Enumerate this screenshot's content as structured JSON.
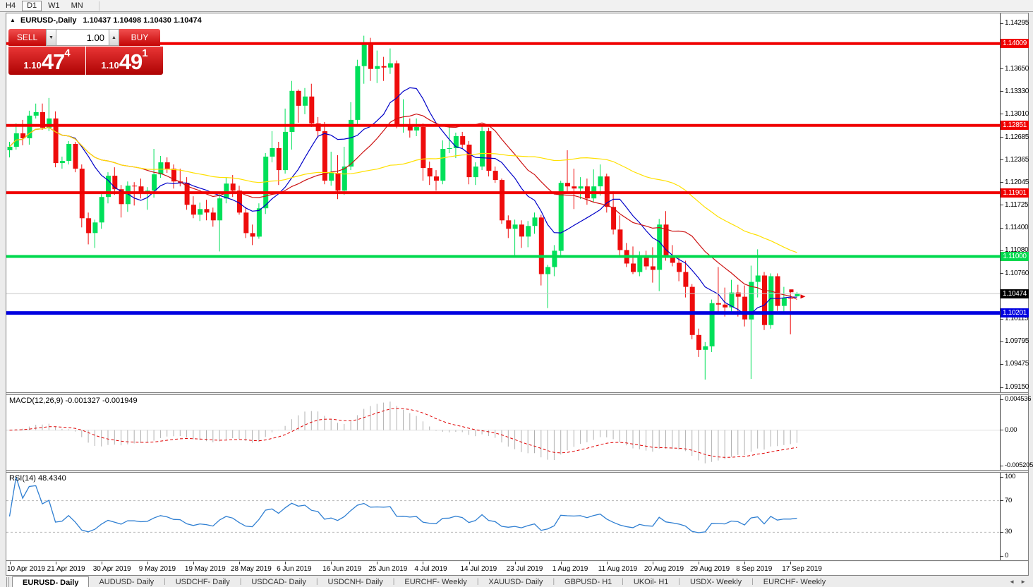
{
  "toolbar": {
    "timeframes": [
      {
        "label": "H4",
        "active": false
      },
      {
        "label": "D1",
        "active": true
      },
      {
        "label": "W1",
        "active": false
      },
      {
        "label": "MN",
        "active": false
      }
    ]
  },
  "chart_header": {
    "collapse_icon": "▲",
    "symbol": "EURUSD-,Daily",
    "ohlc_text": "1.10437 1.10498 1.10430 1.10474"
  },
  "trade_widget": {
    "sell_label": "SELL",
    "buy_label": "BUY",
    "volume": "1.00",
    "spinner_down": "▼",
    "spinner_up": "▲",
    "sell_price_prefix": "1.10",
    "sell_price_big": "47",
    "sell_price_sup": "4",
    "buy_price_prefix": "1.10",
    "buy_price_big": "49",
    "buy_price_sup": "1"
  },
  "price_axis": {
    "ticks": [
      {
        "label": "1.14295",
        "p": 1.14295
      },
      {
        "label": "1.13650",
        "p": 1.1365
      },
      {
        "label": "1.13330",
        "p": 1.1333
      },
      {
        "label": "1.13010",
        "p": 1.1301
      },
      {
        "label": "1.12685",
        "p": 1.12685
      },
      {
        "label": "1.12365",
        "p": 1.12365
      },
      {
        "label": "1.12045",
        "p": 1.12045
      },
      {
        "label": "1.11725",
        "p": 1.11725
      },
      {
        "label": "1.11400",
        "p": 1.114
      },
      {
        "label": "1.11080",
        "p": 1.1108
      },
      {
        "label": "1.10760",
        "p": 1.1076
      },
      {
        "label": "1.10115",
        "p": 1.10115
      },
      {
        "label": "1.09795",
        "p": 1.09795
      },
      {
        "label": "1.09475",
        "p": 1.09475
      },
      {
        "label": "1.09150",
        "p": 1.0915
      }
    ],
    "tags": [
      {
        "label": "1.14009",
        "p": 1.14009,
        "bg": "#f00000"
      },
      {
        "label": "1.12851",
        "p": 1.12851,
        "bg": "#f00000"
      },
      {
        "label": "1.11901",
        "p": 1.11901,
        "bg": "#f00000"
      },
      {
        "label": "1.11000",
        "p": 1.11,
        "bg": "#00d94e"
      },
      {
        "label": "1.10474",
        "p": 1.10474,
        "bg": "#000000"
      },
      {
        "label": "1.10201",
        "p": 1.10201,
        "bg": "#0000e0"
      }
    ]
  },
  "macd": {
    "label": "MACD(12,26,9) -0.001327 -0.001949",
    "params": [
      12,
      26,
      9
    ],
    "values": [
      -0.001327,
      -0.001949
    ],
    "range": [
      -0.005205,
      0.004536
    ],
    "axis": [
      {
        "label": "0.004536",
        "v": 0.004536
      },
      {
        "label": "0.00",
        "v": 0
      },
      {
        "label": "-0.005205",
        "v": -0.005205
      }
    ]
  },
  "rsi": {
    "label": "RSI(14) 48.4340",
    "period": 14,
    "value": 48.434,
    "levels": [
      70,
      30
    ],
    "axis": [
      {
        "label": "100",
        "v": 100
      },
      {
        "label": "70",
        "v": 70
      },
      {
        "label": "30",
        "v": 30
      },
      {
        "label": "0",
        "v": 0
      }
    ]
  },
  "date_axis": {
    "labels": [
      "10 Apr 2019",
      "21 Apr 2019",
      "30 Apr 2019",
      "9 May 2019",
      "19 May 2019",
      "28 May 2019",
      "6 Jun 2019",
      "16 Jun 2019",
      "25 Jun 2019",
      "4 Jul 2019",
      "14 Jul 2019",
      "23 Jul 2019",
      "1 Aug 2019",
      "11 Aug 2019",
      "20 Aug 2019",
      "29 Aug 2019",
      "8 Sep 2019",
      "17 Sep 2019"
    ]
  },
  "tabs": {
    "items": [
      {
        "label": "EURUSD- Daily",
        "active": true
      },
      {
        "label": "AUDUSD- Daily",
        "active": false
      },
      {
        "label": "USDCHF- Daily",
        "active": false
      },
      {
        "label": "USDCAD- Daily",
        "active": false
      },
      {
        "label": "USDCNH- Daily",
        "active": false
      },
      {
        "label": "EURCHF- Weekly",
        "active": false
      },
      {
        "label": "XAUUSD- Daily",
        "active": false
      },
      {
        "label": "GBPUSD- H1",
        "active": false
      },
      {
        "label": "UKOil- H1",
        "active": false
      },
      {
        "label": "USDX- Weekly",
        "active": false
      },
      {
        "label": "EURCHF- Weekly",
        "active": false
      }
    ],
    "scroll_left": "◄",
    "scroll_right": "►"
  },
  "chart_data": {
    "type": "candlestick",
    "symbol": "EURUSD-",
    "timeframe": "Daily",
    "ylim": [
      1.0915,
      1.14295
    ],
    "current_price": 1.10474,
    "colors": {
      "bull": "#00e05a",
      "bear": "#ee0c0c",
      "ma_fast": "#0000c8",
      "ma_mid": "#cc1111",
      "ma_slow": "#ffe000",
      "macd_hist": "#b0b0b0",
      "macd_signal": "#e00000",
      "rsi_line": "#2f7fd2",
      "current_line": "#c8c8c8"
    },
    "overlays": [
      {
        "name": "ma-fast",
        "type": "sma",
        "period": 10,
        "color": "#0000c8"
      },
      {
        "name": "ma-mid",
        "type": "sma",
        "period": 21,
        "color": "#cc1111"
      },
      {
        "name": "ma-slow",
        "type": "sma",
        "period": 50,
        "color": "#ffe000"
      }
    ],
    "hlines": [
      {
        "p": 1.14009,
        "color": "#f00000",
        "w": 4
      },
      {
        "p": 1.12851,
        "color": "#f00000",
        "w": 4
      },
      {
        "p": 1.11901,
        "color": "#f00000",
        "w": 4
      },
      {
        "p": 1.11,
        "color": "#00d94e",
        "w": 4
      },
      {
        "p": 1.10201,
        "color": "#0000e0",
        "w": 5
      }
    ],
    "ohlc": [
      [
        1.125,
        1.1262,
        1.124,
        1.1255
      ],
      [
        1.1255,
        1.1288,
        1.1251,
        1.1274
      ],
      [
        1.1274,
        1.1293,
        1.1257,
        1.1267
      ],
      [
        1.1267,
        1.1306,
        1.1258,
        1.1299
      ],
      [
        1.1299,
        1.1316,
        1.1295,
        1.1304
      ],
      [
        1.1304,
        1.1316,
        1.1279,
        1.1282
      ],
      [
        1.1282,
        1.1324,
        1.1277,
        1.1295
      ],
      [
        1.1295,
        1.1305,
        1.1226,
        1.1232
      ],
      [
        1.1232,
        1.1241,
        1.1224,
        1.1235
      ],
      [
        1.1235,
        1.1263,
        1.123,
        1.1259
      ],
      [
        1.1259,
        1.1262,
        1.1219,
        1.1224
      ],
      [
        1.1224,
        1.123,
        1.1141,
        1.1154
      ],
      [
        1.1154,
        1.1162,
        1.1117,
        1.1133
      ],
      [
        1.1133,
        1.1152,
        1.1112,
        1.1148
      ],
      [
        1.1148,
        1.1188,
        1.1139,
        1.1184
      ],
      [
        1.1184,
        1.1219,
        1.1175,
        1.1214
      ],
      [
        1.1214,
        1.1226,
        1.1187,
        1.1195
      ],
      [
        1.1195,
        1.1201,
        1.1155,
        1.1174
      ],
      [
        1.1174,
        1.1206,
        1.1163,
        1.12
      ],
      [
        1.12,
        1.1205,
        1.1172,
        1.1199
      ],
      [
        1.1199,
        1.121,
        1.1182,
        1.1191
      ],
      [
        1.1191,
        1.1198,
        1.1166,
        1.1193
      ],
      [
        1.1193,
        1.1252,
        1.1183,
        1.1216
      ],
      [
        1.1216,
        1.1242,
        1.1211,
        1.1233
      ],
      [
        1.1233,
        1.124,
        1.1218,
        1.1224
      ],
      [
        1.1224,
        1.123,
        1.1196,
        1.1206
      ],
      [
        1.1206,
        1.1224,
        1.1199,
        1.1204
      ],
      [
        1.1204,
        1.1212,
        1.1166,
        1.1173
      ],
      [
        1.1173,
        1.1185,
        1.1154,
        1.1159
      ],
      [
        1.1159,
        1.1176,
        1.115,
        1.1167
      ],
      [
        1.1167,
        1.118,
        1.1151,
        1.1162
      ],
      [
        1.1162,
        1.1169,
        1.1142,
        1.1151
      ],
      [
        1.1151,
        1.1188,
        1.1107,
        1.1182
      ],
      [
        1.1182,
        1.1212,
        1.1175,
        1.1203
      ],
      [
        1.1203,
        1.1215,
        1.1184,
        1.1193
      ],
      [
        1.1193,
        1.12,
        1.1159,
        1.1162
      ],
      [
        1.1162,
        1.117,
        1.1126,
        1.1133
      ],
      [
        1.1133,
        1.1145,
        1.1116,
        1.1128
      ],
      [
        1.1128,
        1.1175,
        1.1125,
        1.1168
      ],
      [
        1.1168,
        1.1246,
        1.116,
        1.1241
      ],
      [
        1.1241,
        1.1277,
        1.1233,
        1.1253
      ],
      [
        1.1253,
        1.1262,
        1.1201,
        1.1222
      ],
      [
        1.1222,
        1.1309,
        1.1217,
        1.1276
      ],
      [
        1.1276,
        1.1348,
        1.1251,
        1.1334
      ],
      [
        1.1334,
        1.1336,
        1.1289,
        1.1313
      ],
      [
        1.1313,
        1.1338,
        1.1301,
        1.1326
      ],
      [
        1.1326,
        1.1344,
        1.1283,
        1.1288
      ],
      [
        1.1288,
        1.1297,
        1.1268,
        1.1277
      ],
      [
        1.1277,
        1.129,
        1.1202,
        1.1207
      ],
      [
        1.1207,
        1.1248,
        1.12,
        1.1218
      ],
      [
        1.1218,
        1.1243,
        1.1181,
        1.1193
      ],
      [
        1.1193,
        1.1255,
        1.1187,
        1.1227
      ],
      [
        1.1227,
        1.1318,
        1.1222,
        1.1293
      ],
      [
        1.1293,
        1.1378,
        1.1287,
        1.1369
      ],
      [
        1.1369,
        1.1412,
        1.1344,
        1.1399
      ],
      [
        1.1399,
        1.1409,
        1.1348,
        1.1365
      ],
      [
        1.1365,
        1.1391,
        1.1345,
        1.1369
      ],
      [
        1.1369,
        1.1382,
        1.1348,
        1.1367
      ],
      [
        1.1367,
        1.1394,
        1.1358,
        1.1373
      ],
      [
        1.1373,
        1.1377,
        1.1281,
        1.1285
      ],
      [
        1.1285,
        1.1322,
        1.1275,
        1.1286
      ],
      [
        1.1286,
        1.1295,
        1.1268,
        1.1278
      ],
      [
        1.1278,
        1.1295,
        1.127,
        1.1283
      ],
      [
        1.1283,
        1.1288,
        1.1207,
        1.1225
      ],
      [
        1.1225,
        1.1234,
        1.1201,
        1.1213
      ],
      [
        1.1213,
        1.1222,
        1.1193,
        1.1207
      ],
      [
        1.1207,
        1.1264,
        1.1202,
        1.1252
      ],
      [
        1.1252,
        1.1286,
        1.1246,
        1.1253
      ],
      [
        1.1253,
        1.1275,
        1.1239,
        1.127
      ],
      [
        1.127,
        1.1276,
        1.1253,
        1.1258
      ],
      [
        1.1258,
        1.1263,
        1.1202,
        1.1212
      ],
      [
        1.1212,
        1.1233,
        1.1201,
        1.1227
      ],
      [
        1.1227,
        1.1285,
        1.1222,
        1.1277
      ],
      [
        1.1277,
        1.1282,
        1.1213,
        1.1221
      ],
      [
        1.1221,
        1.1227,
        1.1204,
        1.1208
      ],
      [
        1.1208,
        1.121,
        1.1146,
        1.1151
      ],
      [
        1.1151,
        1.1158,
        1.1126,
        1.1139
      ],
      [
        1.1139,
        1.1152,
        1.1101,
        1.1145
      ],
      [
        1.1145,
        1.1151,
        1.1112,
        1.1128
      ],
      [
        1.1128,
        1.115,
        1.1113,
        1.1143
      ],
      [
        1.1143,
        1.1162,
        1.1132,
        1.1155
      ],
      [
        1.1155,
        1.1159,
        1.1059,
        1.1075
      ],
      [
        1.1075,
        1.1088,
        1.1027,
        1.1085
      ],
      [
        1.1085,
        1.1116,
        1.1072,
        1.1108
      ],
      [
        1.1108,
        1.1207,
        1.1101,
        1.1204
      ],
      [
        1.1204,
        1.125,
        1.1192,
        1.1199
      ],
      [
        1.1199,
        1.1224,
        1.1167,
        1.1196
      ],
      [
        1.1196,
        1.1212,
        1.1181,
        1.1199
      ],
      [
        1.1199,
        1.121,
        1.1173,
        1.1182
      ],
      [
        1.1182,
        1.1223,
        1.1177,
        1.1199
      ],
      [
        1.1199,
        1.123,
        1.1186,
        1.1213
      ],
      [
        1.1213,
        1.1217,
        1.1162,
        1.117
      ],
      [
        1.117,
        1.1192,
        1.1131,
        1.1138
      ],
      [
        1.1138,
        1.1158,
        1.1102,
        1.1109
      ],
      [
        1.1109,
        1.1119,
        1.1085,
        1.109
      ],
      [
        1.109,
        1.1114,
        1.1075,
        1.1078
      ],
      [
        1.1078,
        1.1107,
        1.1072,
        1.11
      ],
      [
        1.11,
        1.1108,
        1.1081,
        1.1086
      ],
      [
        1.1086,
        1.1113,
        1.1063,
        1.1081
      ],
      [
        1.1081,
        1.1153,
        1.1051,
        1.1145
      ],
      [
        1.1145,
        1.1164,
        1.1094,
        1.1101
      ],
      [
        1.1101,
        1.1116,
        1.1086,
        1.1091
      ],
      [
        1.1091,
        1.1098,
        1.1065,
        1.1078
      ],
      [
        1.1078,
        1.1094,
        1.1042,
        1.1057
      ],
      [
        1.1057,
        1.1061,
        1.0983,
        1.0989
      ],
      [
        1.0989,
        1.0998,
        1.0958,
        1.0968
      ],
      [
        1.0968,
        1.0979,
        1.0926,
        1.0973
      ],
      [
        1.0973,
        1.1039,
        1.0965,
        1.1034
      ],
      [
        1.1034,
        1.1085,
        1.1022,
        1.1032
      ],
      [
        1.1032,
        1.1056,
        1.1015,
        1.1028
      ],
      [
        1.1028,
        1.1067,
        1.1019,
        1.1049
      ],
      [
        1.1049,
        1.106,
        1.1015,
        1.1043
      ],
      [
        1.1043,
        1.1059,
        1.1001,
        1.1011
      ],
      [
        1.1011,
        1.1087,
        1.0927,
        1.1064
      ],
      [
        1.1064,
        1.111,
        1.1042,
        1.1073
      ],
      [
        1.1073,
        1.1078,
        1.0996,
        1.1003
      ],
      [
        1.1003,
        1.1076,
        1.0998,
        1.1072
      ],
      [
        1.1072,
        1.1076,
        1.1023,
        1.103
      ],
      [
        1.103,
        1.1057,
        1.1022,
        1.1041
      ],
      [
        1.1041,
        1.105,
        1.099,
        1.104
      ],
      [
        1.10437,
        1.10498,
        1.1043,
        1.10474
      ]
    ]
  }
}
